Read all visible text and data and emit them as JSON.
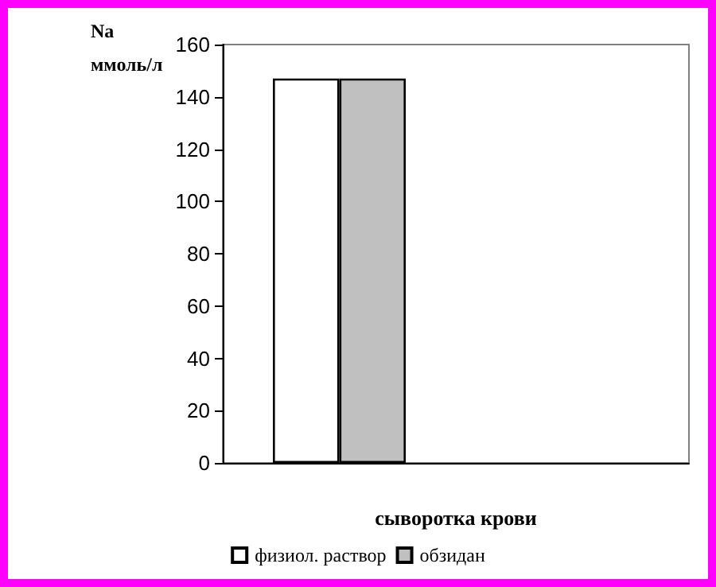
{
  "chart_data": {
    "type": "bar",
    "ylabel": "Na\nммоль/л",
    "xlabel": "сыворотка крови",
    "categories": [
      null,
      null
    ],
    "series": [
      {
        "name": "физиол. раствор",
        "color": "#ffffff",
        "values": [
          147,
          null
        ]
      },
      {
        "name": "обзидан",
        "color": "#c0c0c0",
        "values": [
          147,
          null
        ]
      }
    ],
    "ylim": [
      0,
      160
    ],
    "yticks": [
      0,
      20,
      40,
      60,
      80,
      100,
      120,
      140,
      160
    ],
    "grid": false,
    "legend": "bottom"
  }
}
